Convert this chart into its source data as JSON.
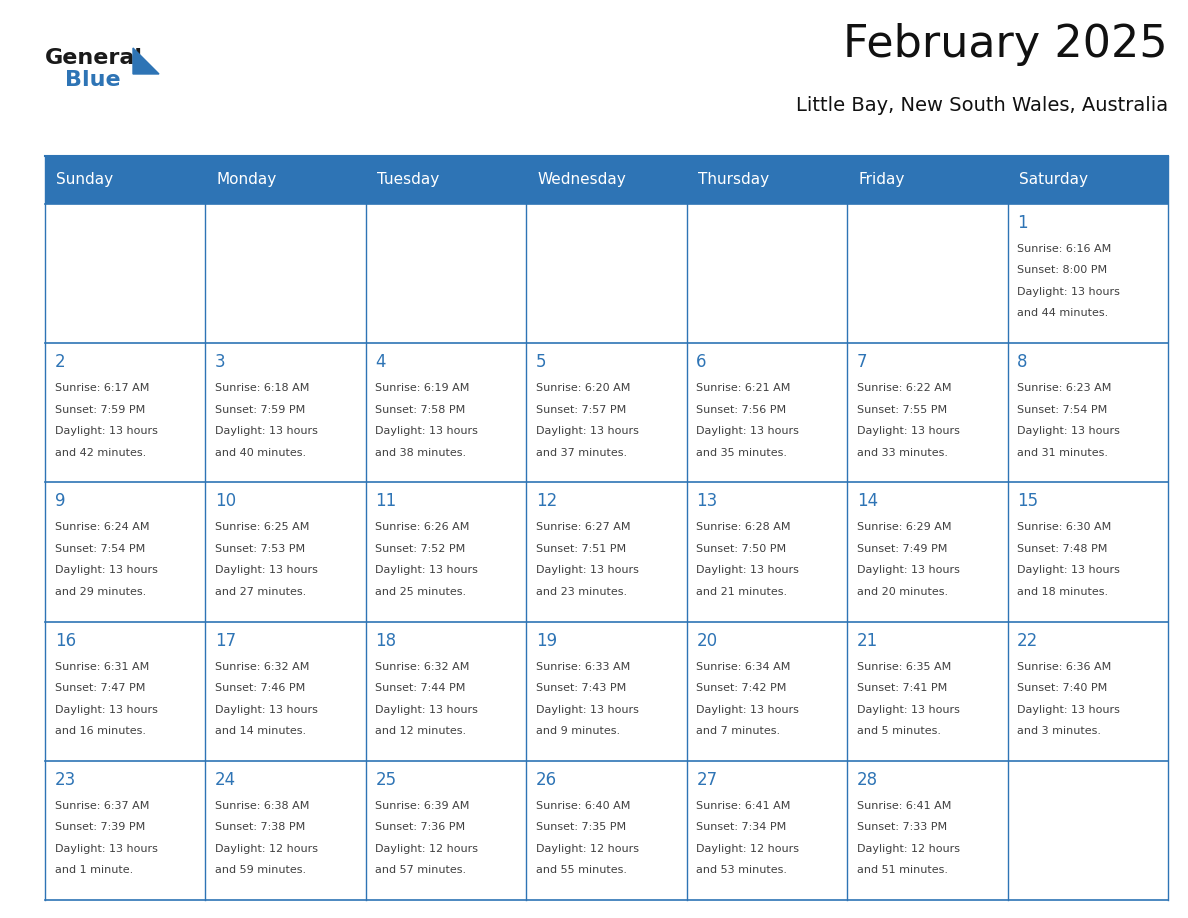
{
  "title": "February 2025",
  "subtitle": "Little Bay, New South Wales, Australia",
  "header_bg": "#2E74B5",
  "header_text_color": "#FFFFFF",
  "border_color": "#2E74B5",
  "day_number_color": "#2E74B5",
  "cell_text_color": "#404040",
  "days_of_week": [
    "Sunday",
    "Monday",
    "Tuesday",
    "Wednesday",
    "Thursday",
    "Friday",
    "Saturday"
  ],
  "calendar_data": [
    [
      null,
      null,
      null,
      null,
      null,
      null,
      {
        "day": 1,
        "sunrise": "6:16 AM",
        "sunset": "8:00 PM",
        "daylight": "13 hours",
        "daylight2": "and 44 minutes."
      }
    ],
    [
      {
        "day": 2,
        "sunrise": "6:17 AM",
        "sunset": "7:59 PM",
        "daylight": "13 hours",
        "daylight2": "and 42 minutes."
      },
      {
        "day": 3,
        "sunrise": "6:18 AM",
        "sunset": "7:59 PM",
        "daylight": "13 hours",
        "daylight2": "and 40 minutes."
      },
      {
        "day": 4,
        "sunrise": "6:19 AM",
        "sunset": "7:58 PM",
        "daylight": "13 hours",
        "daylight2": "and 38 minutes."
      },
      {
        "day": 5,
        "sunrise": "6:20 AM",
        "sunset": "7:57 PM",
        "daylight": "13 hours",
        "daylight2": "and 37 minutes."
      },
      {
        "day": 6,
        "sunrise": "6:21 AM",
        "sunset": "7:56 PM",
        "daylight": "13 hours",
        "daylight2": "and 35 minutes."
      },
      {
        "day": 7,
        "sunrise": "6:22 AM",
        "sunset": "7:55 PM",
        "daylight": "13 hours",
        "daylight2": "and 33 minutes."
      },
      {
        "day": 8,
        "sunrise": "6:23 AM",
        "sunset": "7:54 PM",
        "daylight": "13 hours",
        "daylight2": "and 31 minutes."
      }
    ],
    [
      {
        "day": 9,
        "sunrise": "6:24 AM",
        "sunset": "7:54 PM",
        "daylight": "13 hours",
        "daylight2": "and 29 minutes."
      },
      {
        "day": 10,
        "sunrise": "6:25 AM",
        "sunset": "7:53 PM",
        "daylight": "13 hours",
        "daylight2": "and 27 minutes."
      },
      {
        "day": 11,
        "sunrise": "6:26 AM",
        "sunset": "7:52 PM",
        "daylight": "13 hours",
        "daylight2": "and 25 minutes."
      },
      {
        "day": 12,
        "sunrise": "6:27 AM",
        "sunset": "7:51 PM",
        "daylight": "13 hours",
        "daylight2": "and 23 minutes."
      },
      {
        "day": 13,
        "sunrise": "6:28 AM",
        "sunset": "7:50 PM",
        "daylight": "13 hours",
        "daylight2": "and 21 minutes."
      },
      {
        "day": 14,
        "sunrise": "6:29 AM",
        "sunset": "7:49 PM",
        "daylight": "13 hours",
        "daylight2": "and 20 minutes."
      },
      {
        "day": 15,
        "sunrise": "6:30 AM",
        "sunset": "7:48 PM",
        "daylight": "13 hours",
        "daylight2": "and 18 minutes."
      }
    ],
    [
      {
        "day": 16,
        "sunrise": "6:31 AM",
        "sunset": "7:47 PM",
        "daylight": "13 hours",
        "daylight2": "and 16 minutes."
      },
      {
        "day": 17,
        "sunrise": "6:32 AM",
        "sunset": "7:46 PM",
        "daylight": "13 hours",
        "daylight2": "and 14 minutes."
      },
      {
        "day": 18,
        "sunrise": "6:32 AM",
        "sunset": "7:44 PM",
        "daylight": "13 hours",
        "daylight2": "and 12 minutes."
      },
      {
        "day": 19,
        "sunrise": "6:33 AM",
        "sunset": "7:43 PM",
        "daylight": "13 hours",
        "daylight2": "and 9 minutes."
      },
      {
        "day": 20,
        "sunrise": "6:34 AM",
        "sunset": "7:42 PM",
        "daylight": "13 hours",
        "daylight2": "and 7 minutes."
      },
      {
        "day": 21,
        "sunrise": "6:35 AM",
        "sunset": "7:41 PM",
        "daylight": "13 hours",
        "daylight2": "and 5 minutes."
      },
      {
        "day": 22,
        "sunrise": "6:36 AM",
        "sunset": "7:40 PM",
        "daylight": "13 hours",
        "daylight2": "and 3 minutes."
      }
    ],
    [
      {
        "day": 23,
        "sunrise": "6:37 AM",
        "sunset": "7:39 PM",
        "daylight": "13 hours",
        "daylight2": "and 1 minute."
      },
      {
        "day": 24,
        "sunrise": "6:38 AM",
        "sunset": "7:38 PM",
        "daylight": "12 hours",
        "daylight2": "and 59 minutes."
      },
      {
        "day": 25,
        "sunrise": "6:39 AM",
        "sunset": "7:36 PM",
        "daylight": "12 hours",
        "daylight2": "and 57 minutes."
      },
      {
        "day": 26,
        "sunrise": "6:40 AM",
        "sunset": "7:35 PM",
        "daylight": "12 hours",
        "daylight2": "and 55 minutes."
      },
      {
        "day": 27,
        "sunrise": "6:41 AM",
        "sunset": "7:34 PM",
        "daylight": "12 hours",
        "daylight2": "and 53 minutes."
      },
      {
        "day": 28,
        "sunrise": "6:41 AM",
        "sunset": "7:33 PM",
        "daylight": "12 hours",
        "daylight2": "and 51 minutes."
      },
      null
    ]
  ],
  "logo_color_general": "#1a1a1a",
  "logo_color_blue": "#2E74B5",
  "fig_width": 11.88,
  "fig_height": 9.18,
  "dpi": 100
}
